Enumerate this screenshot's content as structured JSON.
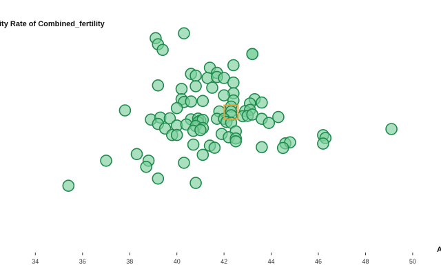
{
  "chart_data": {
    "type": "scatter",
    "ylabel": "ity Rate of Combined_fertility",
    "xlabel": "A",
    "xlim": [
      32.5,
      51.2
    ],
    "ylim": [
      0,
      1
    ],
    "x_ticks": [
      "34",
      "36",
      "38",
      "40",
      "42",
      "44",
      "46",
      "48",
      "50"
    ],
    "x_tick_values": [
      34,
      36,
      38,
      40,
      42,
      44,
      46,
      48,
      50
    ],
    "y_axis_values_shown": false,
    "grid": false,
    "colors": {
      "point_fill": "#7ccf9d",
      "point_stroke": "#1e8a4c",
      "highlight": "#e0a43a"
    },
    "highlight_point": {
      "x": 42.3,
      "y": 0.574
    },
    "points": [
      {
        "x": 39.1,
        "y": 0.864
      },
      {
        "x": 40.3,
        "y": 0.883
      },
      {
        "x": 39.2,
        "y": 0.84
      },
      {
        "x": 39.4,
        "y": 0.818
      },
      {
        "x": 43.2,
        "y": 0.802
      },
      {
        "x": 43.2,
        "y": 0.802
      },
      {
        "x": 42.4,
        "y": 0.758
      },
      {
        "x": 41.4,
        "y": 0.748
      },
      {
        "x": 40.6,
        "y": 0.724
      },
      {
        "x": 41.7,
        "y": 0.728
      },
      {
        "x": 40.8,
        "y": 0.717
      },
      {
        "x": 41.3,
        "y": 0.708
      },
      {
        "x": 41.7,
        "y": 0.712
      },
      {
        "x": 42.0,
        "y": 0.708
      },
      {
        "x": 42.4,
        "y": 0.69
      },
      {
        "x": 39.2,
        "y": 0.679
      },
      {
        "x": 40.2,
        "y": 0.665
      },
      {
        "x": 40.8,
        "y": 0.676
      },
      {
        "x": 41.5,
        "y": 0.67
      },
      {
        "x": 42.4,
        "y": 0.648
      },
      {
        "x": 42.0,
        "y": 0.64
      },
      {
        "x": 40.2,
        "y": 0.625
      },
      {
        "x": 40.3,
        "y": 0.614
      },
      {
        "x": 40.6,
        "y": 0.616
      },
      {
        "x": 41.1,
        "y": 0.618
      },
      {
        "x": 42.4,
        "y": 0.62
      },
      {
        "x": 43.3,
        "y": 0.625
      },
      {
        "x": 43.6,
        "y": 0.612
      },
      {
        "x": 42.3,
        "y": 0.596
      },
      {
        "x": 43.1,
        "y": 0.608
      },
      {
        "x": 40.0,
        "y": 0.59
      },
      {
        "x": 37.8,
        "y": 0.581
      },
      {
        "x": 41.8,
        "y": 0.577
      },
      {
        "x": 42.9,
        "y": 0.578
      },
      {
        "x": 43.1,
        "y": 0.583
      },
      {
        "x": 42.3,
        "y": 0.577
      },
      {
        "x": 42.3,
        "y": 0.562
      },
      {
        "x": 42.8,
        "y": 0.558
      },
      {
        "x": 43.0,
        "y": 0.56
      },
      {
        "x": 43.2,
        "y": 0.565
      },
      {
        "x": 41.7,
        "y": 0.548
      },
      {
        "x": 42.0,
        "y": 0.548
      },
      {
        "x": 43.6,
        "y": 0.548
      },
      {
        "x": 44.3,
        "y": 0.555
      },
      {
        "x": 38.9,
        "y": 0.545
      },
      {
        "x": 39.3,
        "y": 0.553
      },
      {
        "x": 39.7,
        "y": 0.55
      },
      {
        "x": 40.6,
        "y": 0.546
      },
      {
        "x": 40.9,
        "y": 0.549
      },
      {
        "x": 41.0,
        "y": 0.541
      },
      {
        "x": 40.9,
        "y": 0.535
      },
      {
        "x": 41.1,
        "y": 0.544
      },
      {
        "x": 42.1,
        "y": 0.536
      },
      {
        "x": 42.3,
        "y": 0.533
      },
      {
        "x": 43.9,
        "y": 0.532
      },
      {
        "x": 39.2,
        "y": 0.528
      },
      {
        "x": 40.0,
        "y": 0.522
      },
      {
        "x": 40.4,
        "y": 0.526
      },
      {
        "x": 40.8,
        "y": 0.52
      },
      {
        "x": 41.1,
        "y": 0.512
      },
      {
        "x": 39.5,
        "y": 0.51
      },
      {
        "x": 40.7,
        "y": 0.501
      },
      {
        "x": 41.0,
        "y": 0.504
      },
      {
        "x": 41.9,
        "y": 0.489
      },
      {
        "x": 42.5,
        "y": 0.499
      },
      {
        "x": 39.8,
        "y": 0.485
      },
      {
        "x": 40.0,
        "y": 0.485
      },
      {
        "x": 42.2,
        "y": 0.476
      },
      {
        "x": 42.5,
        "y": 0.471
      },
      {
        "x": 42.5,
        "y": 0.46
      },
      {
        "x": 46.2,
        "y": 0.484
      },
      {
        "x": 46.3,
        "y": 0.473
      },
      {
        "x": 46.2,
        "y": 0.451
      },
      {
        "x": 44.6,
        "y": 0.452
      },
      {
        "x": 44.8,
        "y": 0.456
      },
      {
        "x": 40.7,
        "y": 0.447
      },
      {
        "x": 41.4,
        "y": 0.443
      },
      {
        "x": 41.6,
        "y": 0.435
      },
      {
        "x": 43.6,
        "y": 0.437
      },
      {
        "x": 44.5,
        "y": 0.434
      },
      {
        "x": 49.1,
        "y": 0.508
      },
      {
        "x": 38.3,
        "y": 0.41
      },
      {
        "x": 41.1,
        "y": 0.407
      },
      {
        "x": 37.0,
        "y": 0.384
      },
      {
        "x": 38.8,
        "y": 0.384
      },
      {
        "x": 40.3,
        "y": 0.376
      },
      {
        "x": 38.7,
        "y": 0.36
      },
      {
        "x": 39.2,
        "y": 0.314
      },
      {
        "x": 40.8,
        "y": 0.297
      },
      {
        "x": 35.4,
        "y": 0.286
      }
    ]
  }
}
